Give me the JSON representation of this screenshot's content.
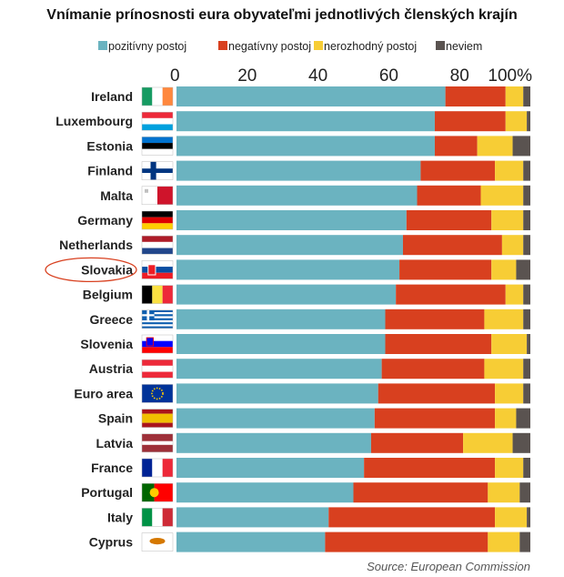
{
  "title": "Vnímanie prínosnosti eura obyvateľmi jednotlivých členských krajín",
  "source": "Source: European Commission",
  "colors": {
    "pozitivny": "#6bb3c0",
    "negativny": "#d8401f",
    "nerozhodny": "#f7cd35",
    "neviem": "#5a5350"
  },
  "chart_data": {
    "type": "bar",
    "orientation": "horizontal",
    "stacked": true,
    "xlim": [
      0,
      100
    ],
    "x_ticks": [
      "0",
      "20",
      "40",
      "60",
      "80",
      "100%"
    ],
    "legend_position": "top",
    "grid": false,
    "highlighted_category": "Slovakia",
    "categories": [
      "Ireland",
      "Luxembourg",
      "Estonia",
      "Finland",
      "Malta",
      "Germany",
      "Netherlands",
      "Slovakia",
      "Belgium",
      "Greece",
      "Slovenia",
      "Austria",
      "Euro area",
      "Spain",
      "Latvia",
      "France",
      "Portugal",
      "Italy",
      "Cyprus"
    ],
    "series": [
      {
        "name": "pozitívny postoj",
        "color_key": "pozitivny",
        "values": [
          76,
          73,
          73,
          69,
          68,
          65,
          64,
          63,
          62,
          59,
          59,
          58,
          57,
          56,
          55,
          53,
          50,
          43,
          42
        ]
      },
      {
        "name": "negatívny postoj",
        "color_key": "negativny",
        "values": [
          17,
          20,
          12,
          21,
          18,
          24,
          28,
          26,
          31,
          28,
          30,
          29,
          33,
          34,
          26,
          37,
          38,
          47,
          46
        ]
      },
      {
        "name": "nerozhodný postoj",
        "color_key": "nerozhodny",
        "values": [
          5,
          6,
          10,
          8,
          12,
          9,
          6,
          7,
          5,
          11,
          10,
          11,
          8,
          6,
          14,
          8,
          9,
          9,
          9
        ]
      },
      {
        "name": "neviem",
        "color_key": "neviem",
        "values": [
          2,
          1,
          5,
          2,
          2,
          2,
          2,
          4,
          2,
          2,
          1,
          2,
          2,
          4,
          5,
          2,
          3,
          1,
          3
        ]
      }
    ]
  }
}
